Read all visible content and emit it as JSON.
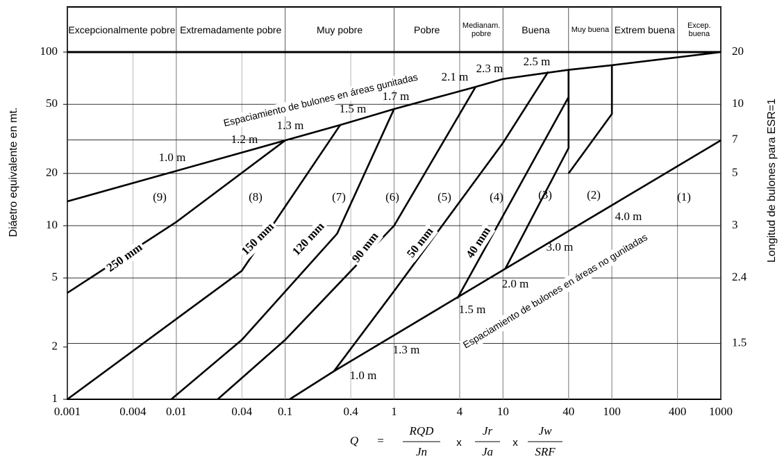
{
  "chart_data": {
    "type": "line",
    "y_label": "Diáetro equivalente en mt.",
    "y2_label": "Longitud de bulones para ESR=1",
    "formula": {
      "lhs": "Q",
      "eq": "=",
      "op": "x",
      "terms": [
        [
          "RQD",
          "Jn"
        ],
        [
          "Jr",
          "Ja"
        ],
        [
          "Jw",
          "SRF"
        ]
      ]
    },
    "x_log": true,
    "y_log": true,
    "grid": true,
    "xlim": [
      0.001,
      1000
    ],
    "ylim": [
      1,
      100
    ],
    "xticks": [
      0.001,
      0.004,
      0.01,
      0.04,
      0.1,
      0.4,
      1,
      4,
      10,
      40,
      100,
      400,
      1000
    ],
    "yticks": [
      1,
      2,
      5,
      10,
      20,
      50,
      100
    ],
    "y2ticks": [
      {
        "value": 100,
        "label": "20"
      },
      {
        "value": 50,
        "label": "10"
      },
      {
        "value": 31.2,
        "label": "7"
      },
      {
        "value": 20,
        "label": "5"
      },
      {
        "value": 10,
        "label": "3"
      },
      {
        "value": 5,
        "label": "2.4"
      },
      {
        "value": 2.1,
        "label": "1.5"
      }
    ],
    "categories": [
      "Excepcionalmente pobre",
      "Extremadamente pobre",
      "Muy pobre",
      "Pobre",
      "Medianam. pobre",
      "Buena",
      "Muy buena",
      "Extrem buena",
      "Excep. buena"
    ],
    "band_edges": [
      0.001,
      0.01,
      0.1,
      1,
      4,
      10,
      40,
      100,
      400,
      1000
    ],
    "series": [
      {
        "color": "#000000",
        "x": [
          0.001,
          0.32,
          1,
          5.6,
          10,
          40,
          100,
          1000
        ],
        "values": [
          13.8,
          38,
          47,
          63,
          70,
          79,
          84,
          100
        ]
      },
      {
        "color": "#000000",
        "x": [
          0.11,
          0.28,
          10.5,
          1000
        ],
        "values": [
          1,
          1.45,
          5.65,
          31
        ]
      },
      {
        "color": "#000000",
        "x": [
          0.001,
          0.01,
          0.1
        ],
        "values": [
          4.1,
          10.5,
          31
        ]
      },
      {
        "color": "#000000",
        "x": [
          0.001,
          0.01,
          0.04,
          0.32
        ],
        "values": [
          1,
          2.9,
          5.5,
          38
        ]
      },
      {
        "color": "#000000",
        "x": [
          0.009,
          0.04,
          0.3,
          1
        ],
        "values": [
          1,
          2.2,
          9,
          47
        ]
      },
      {
        "color": "#000000",
        "x": [
          0.024,
          0.1,
          1,
          5.6
        ],
        "values": [
          1,
          2.2,
          10,
          63
        ]
      },
      {
        "color": "#000000",
        "x": [
          0.28,
          1,
          10,
          26
        ],
        "values": [
          1.45,
          4.2,
          30,
          77
        ]
      },
      {
        "color": "#000000",
        "x": [
          3.8,
          40,
          40
        ],
        "values": [
          3.8,
          55,
          79
        ]
      },
      {
        "color": "#000000",
        "x": [
          10.5,
          40,
          40
        ],
        "values": [
          5.65,
          28,
          55
        ]
      },
      {
        "color": "#000000",
        "x": [
          40,
          100,
          100
        ],
        "values": [
          20,
          44,
          84
        ]
      }
    ],
    "annotations": [
      "(9)",
      "(8)",
      "(7)",
      "(6)",
      "(5)",
      "(4)",
      "(3)",
      "(2)",
      "(1)",
      "250 mm",
      "150 mm",
      "120 mm",
      "90 mm",
      "50 mm",
      "40 mm",
      "1.0 m",
      "1.2 m",
      "1.3 m",
      "1.5 m",
      "1.7 m",
      "2.1 m",
      "2.3 m",
      "2.5 m",
      "1.0 m",
      "1.3 m",
      "1.5 m",
      "2.0 m",
      "3.0 m",
      "4.0 m",
      "Espaciamiento de bulones en áreas  gunitadas",
      "Espaciamiento de bulones en áreas no gunitadas"
    ]
  }
}
